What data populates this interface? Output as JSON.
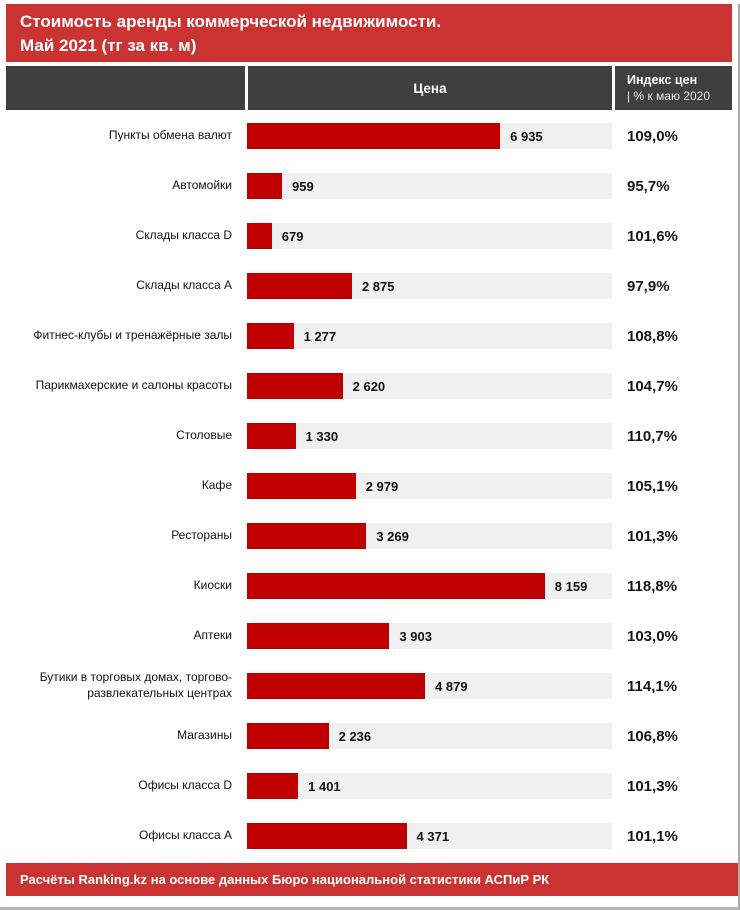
{
  "page": {
    "title_line1": "Стоимость аренды коммерческой недвижимости.",
    "title_line2": "Май 2021 (тг за кв. м)"
  },
  "table_header": {
    "price_column": "Цена",
    "index_line1": "Индекс цен",
    "index_line2": "| % к маю 2020"
  },
  "footer": {
    "text": "Расчёты Ranking.kz на основе данных Бюро национальной статистики АСПиР РК"
  },
  "colors": {
    "banner_red": "#cb3333",
    "bar_red": "#c00000",
    "header_gray": "#3f3f3f",
    "track_gray": "#f0f0f0"
  },
  "chart_data": {
    "type": "bar",
    "orientation": "horizontal",
    "title": "Стоимость аренды коммерческой недвижимости. Май 2021 (тг за кв. м)",
    "xlabel": "Цена, тг за кв. м",
    "ylabel": "",
    "xlim": [
      0,
      10000
    ],
    "grid": false,
    "legend_position": "none",
    "categories": [
      "Пункты обмена валют",
      "Автомойки",
      "Склады класса D",
      "Склады класса А",
      "Фитнес-клубы и тренажёрные залы",
      "Парикмахерские и салоны красоты",
      "Столовые",
      "Кафе",
      "Рестораны",
      "Киоски",
      "Аптеки",
      "Бутики в торговых домах, торгово-развлекательных центрах",
      "Магазины",
      "Офисы класса D",
      "Офисы класса А"
    ],
    "series": [
      {
        "name": "Цена, тг за кв. м",
        "values": [
          6935,
          959,
          679,
          2875,
          1277,
          2620,
          1330,
          2979,
          3269,
          8159,
          3903,
          4879,
          2236,
          1401,
          4371
        ]
      },
      {
        "name": "Индекс цен, % к маю 2020",
        "values": [
          109.0,
          95.7,
          101.6,
          97.9,
          108.8,
          104.7,
          110.7,
          105.1,
          101.3,
          118.8,
          103.0,
          114.1,
          106.8,
          101.3,
          101.1
        ]
      }
    ],
    "rows": [
      {
        "category": "Пункты обмена валют",
        "value": 6935,
        "value_label": "6 935",
        "index_label": "109,0%"
      },
      {
        "category": "Автомойки",
        "value": 959,
        "value_label": "959",
        "index_label": "95,7%"
      },
      {
        "category": "Склады класса D",
        "value": 679,
        "value_label": "679",
        "index_label": "101,6%"
      },
      {
        "category": "Склады класса А",
        "value": 2875,
        "value_label": "2 875",
        "index_label": "97,9%"
      },
      {
        "category": "Фитнес-клубы и тренажёрные залы",
        "value": 1277,
        "value_label": "1 277",
        "index_label": "108,8%"
      },
      {
        "category": "Парикмахерские и салоны красоты",
        "value": 2620,
        "value_label": "2 620",
        "index_label": "104,7%"
      },
      {
        "category": "Столовые",
        "value": 1330,
        "value_label": "1 330",
        "index_label": "110,7%"
      },
      {
        "category": "Кафе",
        "value": 2979,
        "value_label": "2 979",
        "index_label": "105,1%"
      },
      {
        "category": "Рестораны",
        "value": 3269,
        "value_label": "3 269",
        "index_label": "101,3%"
      },
      {
        "category": "Киоски",
        "value": 8159,
        "value_label": "8 159",
        "index_label": "118,8%"
      },
      {
        "category": "Аптеки",
        "value": 3903,
        "value_label": "3 903",
        "index_label": "103,0%"
      },
      {
        "category": "Бутики  в торговых домах, торгово-развлекательных центрах",
        "value": 4879,
        "value_label": "4 879",
        "index_label": "114,1%"
      },
      {
        "category": "Магазины",
        "value": 2236,
        "value_label": "2 236",
        "index_label": "106,8%"
      },
      {
        "category": "Офисы класса D",
        "value": 1401,
        "value_label": "1 401",
        "index_label": "101,3%"
      },
      {
        "category": "Офисы класса А",
        "value": 4371,
        "value_label": "4 371",
        "index_label": "101,1%"
      }
    ]
  }
}
